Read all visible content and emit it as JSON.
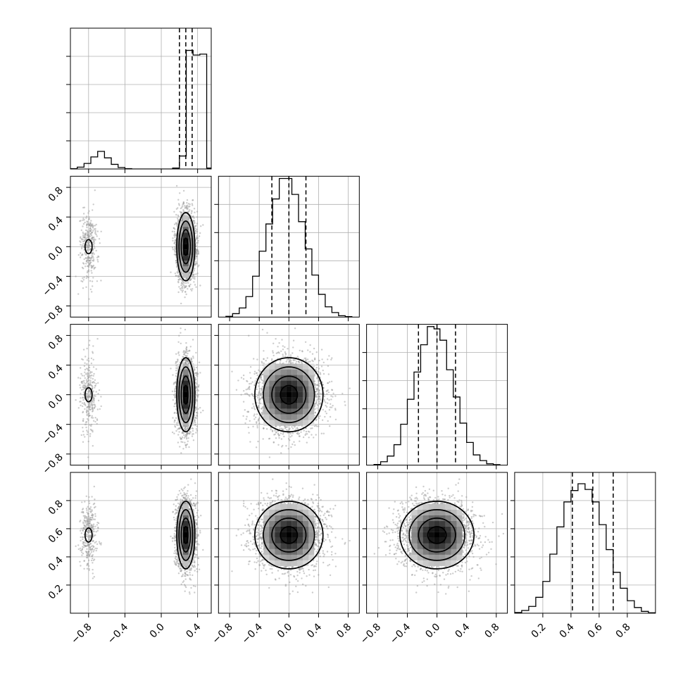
{
  "chart_data": {
    "type": "corner",
    "ndim": 4,
    "grid": true,
    "colors": {
      "hist_line": "#000000",
      "quantile_line": "#000000",
      "grid": "#b0b0b0",
      "scatter": "#9a9a9a",
      "density_max": "#000000",
      "density_min": "#ffffff"
    },
    "contour_levels": 3,
    "parameters": [
      {
        "index": 0,
        "range": [
          -1.0,
          0.55
        ],
        "hist_edges": [
          -1.0,
          -0.925,
          -0.85,
          -0.775,
          -0.7,
          -0.625,
          -0.55,
          -0.475,
          -0.4,
          -0.325,
          -0.25,
          -0.175,
          -0.1,
          -0.025,
          0.05,
          0.125,
          0.2,
          0.275,
          0.35,
          0.425,
          0.5,
          0.55
        ],
        "hist_counts": [
          2,
          10,
          30,
          65,
          95,
          60,
          25,
          8,
          2,
          0,
          0,
          0,
          0,
          0,
          0,
          5,
          70,
          640,
          615,
          620,
          5
        ],
        "hist_max": 760,
        "quantiles": [
          0.2,
          0.27,
          0.34
        ],
        "modes": [
          {
            "center": -0.8,
            "sigma": 0.05,
            "weight": 0.12
          },
          {
            "center": 0.27,
            "sigma": 0.05,
            "weight": 0.88
          }
        ]
      },
      {
        "index": 1,
        "range": [
          -0.95,
          0.95
        ],
        "hist_edges": [
          -0.85,
          -0.76,
          -0.67,
          -0.58,
          -0.49,
          -0.4,
          -0.31,
          -0.22,
          -0.13,
          -0.04,
          0.04,
          0.13,
          0.22,
          0.31,
          0.4,
          0.49,
          0.58,
          0.67,
          0.76,
          0.85
        ],
        "hist_counts": [
          3,
          15,
          40,
          90,
          180,
          290,
          410,
          520,
          610,
          610,
          540,
          420,
          300,
          185,
          100,
          45,
          20,
          6,
          2
        ],
        "hist_max": 620,
        "quantiles": [
          -0.23,
          0.0,
          0.23
        ],
        "sigma": 0.23
      },
      {
        "index": 2,
        "range": [
          -0.95,
          0.95
        ],
        "hist_edges": [
          -0.85,
          -0.76,
          -0.67,
          -0.58,
          -0.49,
          -0.4,
          -0.31,
          -0.22,
          -0.13,
          -0.04,
          0.04,
          0.13,
          0.22,
          0.31,
          0.4,
          0.49,
          0.58,
          0.67,
          0.76,
          0.85
        ],
        "hist_counts": [
          3,
          15,
          40,
          90,
          180,
          290,
          410,
          530,
          610,
          600,
          550,
          420,
          300,
          185,
          100,
          45,
          20,
          6,
          2
        ],
        "hist_max": 620,
        "quantiles": [
          -0.25,
          0.0,
          0.25
        ],
        "sigma": 0.25
      },
      {
        "index": 3,
        "range": [
          0.0,
          1.0
        ],
        "hist_edges": [
          0.0,
          0.05,
          0.1,
          0.15,
          0.2,
          0.25,
          0.3,
          0.35,
          0.4,
          0.45,
          0.5,
          0.55,
          0.6,
          0.65,
          0.7,
          0.75,
          0.8,
          0.85,
          0.9,
          0.95,
          1.0
        ],
        "hist_counts": [
          3,
          12,
          30,
          70,
          140,
          260,
          380,
          490,
          540,
          570,
          545,
          490,
          390,
          280,
          180,
          110,
          55,
          25,
          8,
          2
        ],
        "hist_max": 620,
        "quantiles": [
          0.41,
          0.555,
          0.7
        ],
        "sigma": 0.12
      }
    ],
    "axes": {
      "x_ticks": [
        [
          "−0.8",
          "−0.4",
          "0.0",
          "0.4"
        ],
        [
          "−0.8",
          "−0.4",
          "0.0",
          "0.4",
          "0.8"
        ],
        [
          "−0.8",
          "−0.4",
          "0.0",
          "0.4",
          "0.8"
        ],
        [
          "0.2",
          "0.4",
          "0.6",
          "0.8"
        ]
      ],
      "x_tick_values": [
        [
          -0.8,
          -0.4,
          0.0,
          0.4
        ],
        [
          -0.8,
          -0.4,
          0.0,
          0.4,
          0.8
        ],
        [
          -0.8,
          -0.4,
          0.0,
          0.4,
          0.8
        ],
        [
          0.2,
          0.4,
          0.6,
          0.8
        ]
      ],
      "y_ticks": {
        "1": [
          "−0.8",
          "−0.4",
          "0.0",
          "0.4",
          "0.8"
        ],
        "2": [
          "−0.8",
          "−0.4",
          "0.0",
          "0.4",
          "0.8"
        ],
        "3": [
          "0.2",
          "0.4",
          "0.6",
          "0.8"
        ]
      },
      "y_tick_values": {
        "1": [
          -0.8,
          -0.4,
          0.0,
          0.4,
          0.8
        ],
        "2": [
          -0.8,
          -0.4,
          0.0,
          0.4,
          0.8
        ],
        "3": [
          0.2,
          0.4,
          0.6,
          0.8
        ]
      }
    }
  }
}
